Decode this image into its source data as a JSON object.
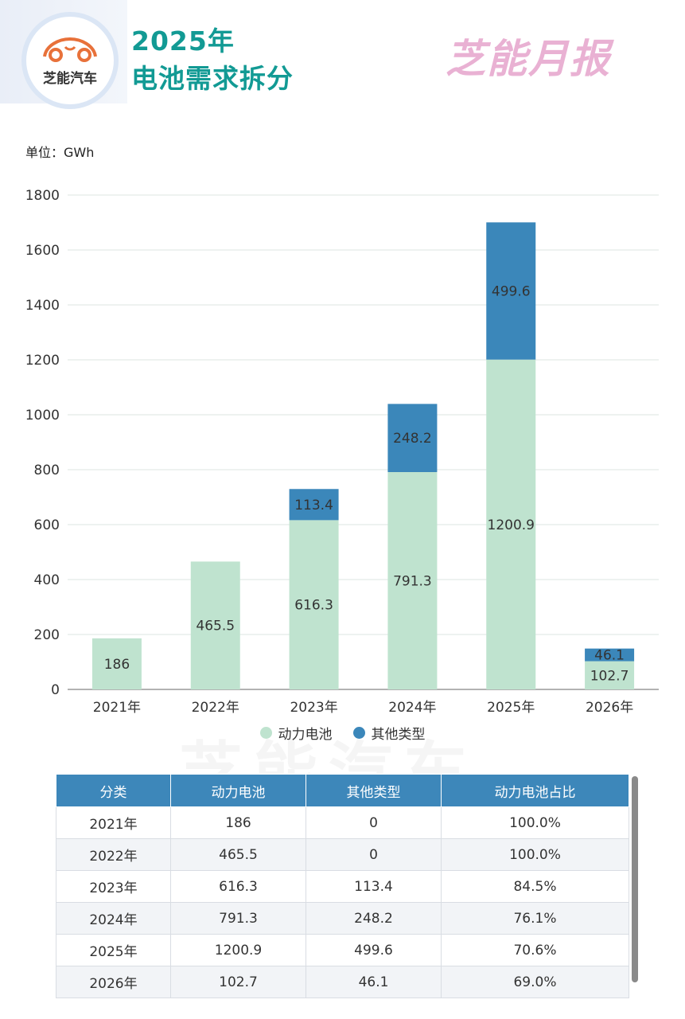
{
  "header": {
    "logo_text": "芝能汽车",
    "title_line1": "2025年",
    "title_line2": "电池需求拆分",
    "brand_wordmark": "芝能月报",
    "watermark_text": "芝能汽车"
  },
  "unit_label": "单位：GWh",
  "colors": {
    "power": "#bfe3cf",
    "other": "#3b87ba",
    "title": "#129a94",
    "table_header": "#3d87ba"
  },
  "chart_data": {
    "type": "bar",
    "stacked": true,
    "categories": [
      "2021年",
      "2022年",
      "2023年",
      "2024年",
      "2025年",
      "2026年"
    ],
    "series": [
      {
        "name": "动力电池",
        "values": [
          186,
          465.5,
          616.3,
          791.3,
          1200.9,
          102.7
        ]
      },
      {
        "name": "其他类型",
        "values": [
          0,
          0,
          113.4,
          248.2,
          499.6,
          46.1
        ]
      }
    ],
    "data_labels": {
      "power": [
        "186",
        "465.5",
        "616.3",
        "791.3",
        "1200.9",
        "102.7"
      ],
      "other": [
        "",
        "",
        "113.4",
        "248.2",
        "499.6",
        "46.1"
      ]
    },
    "yticks": [
      "0",
      "200",
      "400",
      "600",
      "800",
      "1000",
      "1200",
      "1400",
      "1600",
      "1800"
    ],
    "ylim": [
      0,
      1800
    ],
    "grid": true,
    "legend": "bottom"
  },
  "table": {
    "headers": [
      "分类",
      "动力电池",
      "其他类型",
      "动力电池占比"
    ],
    "rows": [
      [
        "2021年",
        "186",
        "0",
        "100.0%"
      ],
      [
        "2022年",
        "465.5",
        "0",
        "100.0%"
      ],
      [
        "2023年",
        "616.3",
        "113.4",
        "84.5%"
      ],
      [
        "2024年",
        "791.3",
        "248.2",
        "76.1%"
      ],
      [
        "2025年",
        "1200.9",
        "499.6",
        "70.6%"
      ],
      [
        "2026年",
        "102.7",
        "46.1",
        "69.0%"
      ]
    ]
  }
}
